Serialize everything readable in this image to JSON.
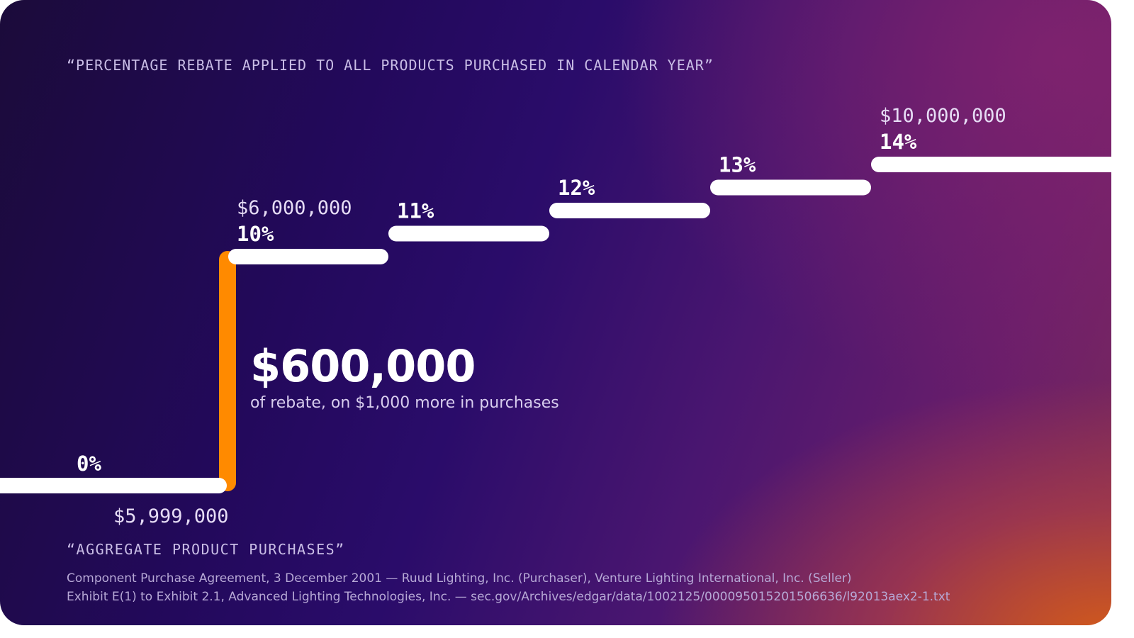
{
  "chart_data": {
    "type": "line",
    "title": "“PERCENTAGE REBATE APPLIED TO ALL PRODUCTS PURCHASED IN CALENDAR YEAR”",
    "xlabel": "“AGGREGATE PRODUCT PURCHASES”",
    "ylabel": "",
    "steps": [
      {
        "rebate": "0%",
        "threshold": "$5,999,000"
      },
      {
        "rebate": "10%",
        "threshold": "$6,000,000"
      },
      {
        "rebate": "11%",
        "threshold": ""
      },
      {
        "rebate": "12%",
        "threshold": ""
      },
      {
        "rebate": "13%",
        "threshold": ""
      },
      {
        "rebate": "14%",
        "threshold": "$10,000,000"
      }
    ],
    "y_values": [
      0,
      10,
      11,
      12,
      13,
      14
    ],
    "ylim": [
      0,
      14
    ],
    "highlight": {
      "amount": "$600,000",
      "note": "of rebate, on $1,000 more in purchases",
      "color": "#ff8a00"
    },
    "step_color": "#ffffff",
    "grid": false
  },
  "source": {
    "line1": "Component Purchase Agreement, 3 December 2001 — Ruud Lighting, Inc. (Purchaser), Venture Lighting International, Inc. (Seller)",
    "line2": "Exhibit E(1) to Exhibit 2.1, Advanced Lighting Technologies, Inc. — sec.gov/Archives/edgar/data/1002125/000095015201506636/l92013aex2-1.txt"
  }
}
